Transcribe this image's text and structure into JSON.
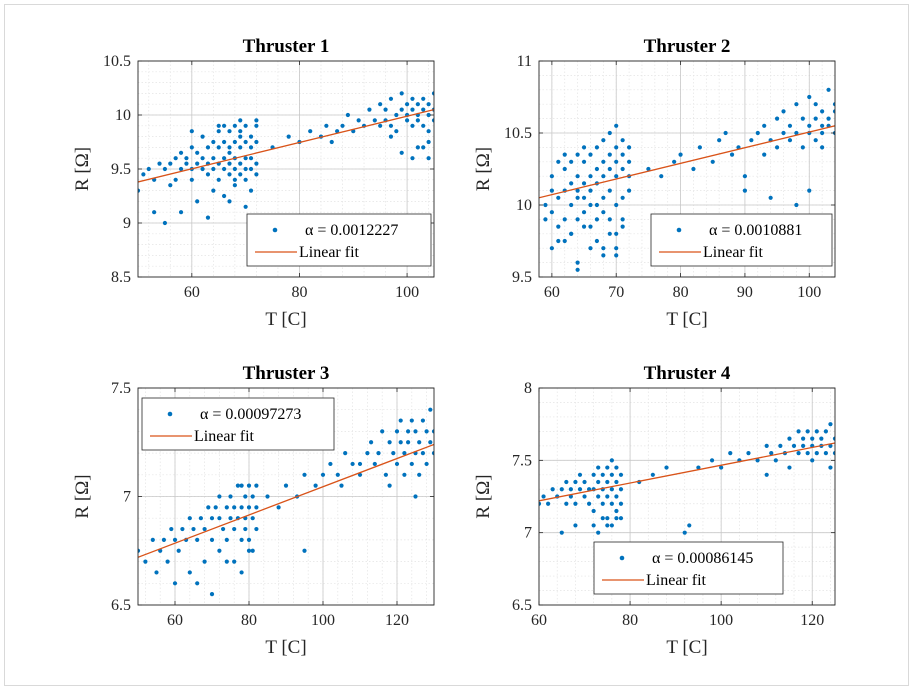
{
  "colors": {
    "scatter": "#0072BD",
    "fit": "#D95319",
    "grid": "#c8c8c8",
    "axis": "#262626"
  },
  "chart_data": [
    {
      "type": "scatter",
      "title": "Thruster 1",
      "xlabel": "T [C]",
      "ylabel": "R [Ω]",
      "xlim": [
        50,
        105
      ],
      "ylim": [
        8.5,
        10.5
      ],
      "xticks": [
        60,
        80,
        100
      ],
      "yticks": [
        8.5,
        9,
        9.5,
        10,
        10.5
      ],
      "xtick_labels": [
        "60",
        "80",
        "100"
      ],
      "ytick_labels": [
        "8.5",
        "9",
        "9.5",
        "10",
        "10.5"
      ],
      "grid": true,
      "minor_grid": true,
      "legend_position": "bottom-right",
      "series": [
        {
          "name": "α = 0.0012227",
          "x": [
            50,
            51,
            52,
            53,
            54,
            55,
            56,
            56,
            57,
            57,
            58,
            58,
            59,
            59,
            60,
            60,
            60,
            61,
            61,
            62,
            62,
            62,
            63,
            63,
            63,
            64,
            64,
            64,
            65,
            65,
            65,
            65,
            66,
            66,
            66,
            66,
            67,
            67,
            67,
            67,
            67,
            68,
            68,
            68,
            68,
            68,
            69,
            69,
            69,
            69,
            69,
            70,
            70,
            70,
            70,
            70,
            71,
            71,
            71,
            71,
            72,
            72,
            72,
            72,
            58,
            61,
            64,
            66,
            68,
            70,
            71,
            55,
            53,
            60,
            65,
            69,
            72,
            63,
            67,
            75,
            78,
            80,
            82,
            84,
            85,
            86,
            87,
            88,
            89,
            90,
            91,
            92,
            93,
            94,
            95,
            95,
            96,
            96,
            97,
            97,
            98,
            98,
            99,
            99,
            100,
            100,
            100,
            101,
            101,
            101,
            102,
            102,
            102,
            103,
            103,
            103,
            104,
            104,
            104,
            105,
            105,
            105,
            99,
            101,
            103,
            104,
            97,
            102,
            104
          ],
          "y": [
            9.3,
            9.45,
            9.5,
            9.4,
            9.55,
            9.5,
            9.55,
            9.35,
            9.6,
            9.4,
            9.5,
            9.65,
            9.55,
            9.6,
            9.5,
            9.7,
            9.4,
            9.55,
            9.65,
            9.5,
            9.8,
            9.6,
            9.55,
            9.7,
            9.45,
            9.6,
            9.75,
            9.5,
            9.55,
            9.7,
            9.85,
            9.4,
            9.6,
            9.75,
            9.5,
            9.9,
            9.55,
            9.7,
            9.85,
            9.45,
            9.65,
            9.6,
            9.75,
            9.5,
            9.9,
            9.4,
            9.55,
            9.7,
            9.85,
            9.45,
            9.95,
            9.6,
            9.75,
            9.5,
            9.9,
            9.4,
            9.6,
            9.8,
            9.5,
            9.7,
            9.55,
            9.75,
            9.9,
            9.45,
            9.1,
            9.2,
            9.3,
            9.25,
            9.35,
            9.15,
            9.3,
            9.0,
            9.1,
            9.85,
            9.9,
            9.8,
            9.95,
            9.05,
            9.2,
            9.7,
            9.8,
            9.75,
            9.85,
            9.8,
            9.9,
            9.75,
            9.85,
            9.9,
            10.0,
            9.85,
            9.95,
            9.9,
            10.05,
            9.95,
            9.9,
            10.1,
            9.95,
            10.05,
            9.9,
            10.15,
            10.0,
            9.85,
            10.05,
            10.2,
            9.95,
            10.1,
            10.0,
            10.05,
            9.9,
            10.15,
            10.0,
            10.1,
            9.95,
            10.05,
            10.15,
            9.9,
            10.1,
            10.0,
            9.85,
            10.05,
            10.2,
            9.95,
            9.65,
            9.6,
            9.7,
            9.75,
            9.8,
            9.7,
            9.6
          ]
        }
      ],
      "fit": {
        "name": "Linear fit",
        "x": [
          50,
          105
        ],
        "y": [
          9.38,
          10.05
        ]
      }
    },
    {
      "type": "scatter",
      "title": "Thruster 2",
      "xlabel": "T [C]",
      "ylabel": "R [Ω]",
      "xlim": [
        58,
        104
      ],
      "ylim": [
        9.5,
        11
      ],
      "xticks": [
        60,
        70,
        80,
        90,
        100
      ],
      "yticks": [
        9.5,
        10,
        10.5,
        11
      ],
      "xtick_labels": [
        "60",
        "70",
        "80",
        "90",
        "100"
      ],
      "ytick_labels": [
        "9.5",
        "10",
        "10.5",
        "11"
      ],
      "grid": true,
      "minor_grid": true,
      "legend_position": "bottom-right",
      "series": [
        {
          "name": "α = 0.0010881",
          "x": [
            59,
            59,
            60,
            60,
            60,
            61,
            61,
            61,
            62,
            62,
            62,
            62,
            63,
            63,
            63,
            63,
            64,
            64,
            64,
            64,
            64,
            65,
            65,
            65,
            65,
            65,
            66,
            66,
            66,
            66,
            66,
            67,
            67,
            67,
            67,
            67,
            68,
            68,
            68,
            68,
            68,
            69,
            69,
            69,
            69,
            69,
            70,
            70,
            70,
            70,
            70,
            70,
            71,
            71,
            71,
            71,
            71,
            72,
            72,
            72,
            72,
            60,
            62,
            64,
            66,
            68,
            70,
            63,
            65,
            67,
            69,
            71,
            61,
            64,
            68,
            70,
            75,
            77,
            79,
            80,
            82,
            83,
            85,
            86,
            87,
            88,
            89,
            90,
            91,
            92,
            93,
            93,
            94,
            95,
            95,
            96,
            96,
            97,
            97,
            98,
            98,
            99,
            99,
            100,
            100,
            100,
            101,
            101,
            101,
            102,
            102,
            102,
            103,
            103,
            103,
            104,
            104,
            104,
            90,
            94,
            98,
            100,
            102
          ],
          "y": [
            10.0,
            9.9,
            10.1,
            9.95,
            10.2,
            10.05,
            10.3,
            9.85,
            10.1,
            10.25,
            9.9,
            10.35,
            10.15,
            10.0,
            10.3,
            9.8,
            10.2,
            10.05,
            10.35,
            9.9,
            10.1,
            10.15,
            10.3,
            9.95,
            10.4,
            10.05,
            10.2,
            10.35,
            10.0,
            10.1,
            9.85,
            10.25,
            10.0,
            10.4,
            9.9,
            10.15,
            10.3,
            10.05,
            10.45,
            9.95,
            10.2,
            10.25,
            10.1,
            10.5,
            9.9,
            10.35,
            10.2,
            10.4,
            10.0,
            10.3,
            9.8,
            10.55,
            10.25,
            10.45,
            10.05,
            10.35,
            9.9,
            10.2,
            10.4,
            10.1,
            10.3,
            9.7,
            9.75,
            9.6,
            9.7,
            9.65,
            9.7,
            9.8,
            9.85,
            9.75,
            9.8,
            9.85,
            9.75,
            9.55,
            9.7,
            9.65,
            10.25,
            10.2,
            10.3,
            10.35,
            10.25,
            10.4,
            10.3,
            10.45,
            10.5,
            10.35,
            10.4,
            10.2,
            10.45,
            10.5,
            10.55,
            10.35,
            10.45,
            10.6,
            10.4,
            10.5,
            10.65,
            10.45,
            10.55,
            10.7,
            10.5,
            10.6,
            10.4,
            10.55,
            10.75,
            10.5,
            10.6,
            10.45,
            10.7,
            10.55,
            10.65,
            10.5,
            10.6,
            10.8,
            10.55,
            10.65,
            10.5,
            10.7,
            10.1,
            10.05,
            10.0,
            10.1,
            10.4
          ]
        }
      ],
      "fit": {
        "name": "Linear fit",
        "x": [
          58,
          104
        ],
        "y": [
          10.05,
          10.55
        ]
      }
    },
    {
      "type": "scatter",
      "title": "Thruster 3",
      "xlabel": "T [C]",
      "ylabel": "R [Ω]",
      "xlim": [
        50,
        130
      ],
      "ylim": [
        6.5,
        7.5
      ],
      "xticks": [
        60,
        80,
        100,
        120
      ],
      "yticks": [
        6.5,
        7,
        7.5
      ],
      "xtick_labels": [
        "60",
        "80",
        "100",
        "120"
      ],
      "ytick_labels": [
        "6.5",
        "7",
        "7.5"
      ],
      "grid": true,
      "minor_grid": true,
      "legend_position": "top-left",
      "series": [
        {
          "name": "α = 0.00097273",
          "x": [
            50,
            52,
            54,
            55,
            56,
            57,
            58,
            59,
            60,
            61,
            62,
            63,
            64,
            65,
            66,
            67,
            68,
            69,
            70,
            70,
            71,
            72,
            72,
            73,
            74,
            74,
            75,
            75,
            76,
            76,
            77,
            77,
            78,
            78,
            78,
            79,
            79,
            79,
            80,
            80,
            80,
            81,
            81,
            81,
            82,
            82,
            82,
            60,
            64,
            68,
            72,
            76,
            78,
            80,
            66,
            70,
            74,
            85,
            88,
            90,
            93,
            95,
            98,
            100,
            102,
            104,
            106,
            108,
            110,
            112,
            113,
            114,
            115,
            116,
            117,
            118,
            119,
            120,
            120,
            121,
            121,
            122,
            122,
            123,
            123,
            124,
            124,
            125,
            125,
            126,
            126,
            127,
            127,
            128,
            128,
            129,
            129,
            130,
            130,
            95,
            105,
            110,
            118,
            125
          ],
          "y": [
            6.75,
            6.7,
            6.8,
            6.65,
            6.75,
            6.8,
            6.7,
            6.85,
            6.8,
            6.75,
            6.85,
            6.8,
            6.9,
            6.85,
            6.8,
            6.9,
            6.85,
            6.95,
            6.9,
            6.8,
            6.95,
            6.9,
            7.0,
            6.85,
            6.95,
            6.8,
            6.9,
            7.0,
            6.85,
            6.95,
            6.9,
            7.05,
            6.8,
            6.95,
            7.05,
            6.9,
            7.0,
            6.85,
            6.95,
            7.05,
            6.8,
            6.9,
            7.0,
            6.75,
            6.95,
            7.05,
            6.85,
            6.6,
            6.65,
            6.7,
            6.75,
            6.7,
            6.65,
            6.75,
            6.6,
            6.55,
            6.7,
            7.0,
            6.95,
            7.05,
            7.0,
            7.1,
            7.05,
            7.1,
            7.15,
            7.1,
            7.2,
            7.15,
            7.1,
            7.2,
            7.25,
            7.15,
            7.2,
            7.3,
            7.1,
            7.25,
            7.2,
            7.3,
            7.15,
            7.25,
            7.35,
            7.2,
            7.1,
            7.3,
            7.25,
            7.15,
            7.35,
            7.2,
            7.3,
            7.1,
            7.25,
            7.35,
            7.2,
            7.3,
            7.15,
            7.25,
            7.4,
            7.2,
            7.3,
            6.75,
            7.05,
            7.15,
            7.05,
            7.0
          ]
        }
      ],
      "fit": {
        "name": "Linear fit",
        "x": [
          50,
          130
        ],
        "y": [
          6.72,
          7.24
        ]
      }
    },
    {
      "type": "scatter",
      "title": "Thruster 4",
      "xlabel": "T [C]",
      "ylabel": "R [Ω]",
      "xlim": [
        60,
        125
      ],
      "ylim": [
        6.5,
        8
      ],
      "xticks": [
        60,
        80,
        100,
        120
      ],
      "yticks": [
        6.5,
        7,
        7.5,
        8
      ],
      "xtick_labels": [
        "60",
        "80",
        "100",
        "120"
      ],
      "ytick_labels": [
        "6.5",
        "7",
        "7.5",
        "8"
      ],
      "grid": true,
      "minor_grid": true,
      "legend_position": "bottom-left",
      "series": [
        {
          "name": "α = 0.00086145",
          "x": [
            60,
            61,
            62,
            63,
            64,
            65,
            66,
            66,
            67,
            67,
            68,
            68,
            69,
            69,
            70,
            70,
            71,
            71,
            72,
            72,
            72,
            73,
            73,
            73,
            74,
            74,
            74,
            75,
            75,
            75,
            75,
            76,
            76,
            76,
            76,
            77,
            77,
            77,
            77,
            78,
            78,
            78,
            72,
            74,
            76,
            78,
            73,
            75,
            77,
            65,
            68,
            82,
            85,
            88,
            92,
            93,
            95,
            98,
            100,
            102,
            104,
            106,
            108,
            110,
            111,
            112,
            113,
            114,
            115,
            116,
            117,
            117,
            118,
            118,
            119,
            119,
            120,
            120,
            121,
            121,
            122,
            122,
            123,
            123,
            124,
            124,
            125,
            125,
            110,
            115,
            120,
            124
          ],
          "y": [
            7.2,
            7.25,
            7.2,
            7.3,
            7.25,
            7.3,
            7.2,
            7.35,
            7.3,
            7.25,
            7.35,
            7.2,
            7.3,
            7.4,
            7.25,
            7.35,
            7.3,
            7.2,
            7.4,
            7.3,
            7.15,
            7.35,
            7.25,
            7.45,
            7.3,
            7.4,
            7.2,
            7.35,
            7.25,
            7.45,
            7.1,
            7.3,
            7.4,
            7.2,
            7.5,
            7.35,
            7.25,
            7.45,
            7.15,
            7.3,
            7.4,
            7.2,
            7.05,
            7.1,
            7.05,
            7.1,
            7.0,
            7.05,
            7.1,
            7.0,
            7.05,
            7.35,
            7.4,
            7.45,
            7.0,
            7.05,
            7.45,
            7.5,
            7.45,
            7.55,
            7.5,
            7.55,
            7.5,
            7.6,
            7.55,
            7.5,
            7.6,
            7.55,
            7.65,
            7.6,
            7.55,
            7.7,
            7.6,
            7.65,
            7.55,
            7.7,
            7.6,
            7.65,
            7.55,
            7.7,
            7.6,
            7.65,
            7.55,
            7.7,
            7.6,
            7.75,
            7.65,
            7.55,
            7.4,
            7.45,
            7.5,
            7.45
          ]
        }
      ],
      "fit": {
        "name": "Linear fit",
        "x": [
          60,
          125
        ],
        "y": [
          7.22,
          7.62
        ]
      }
    }
  ]
}
